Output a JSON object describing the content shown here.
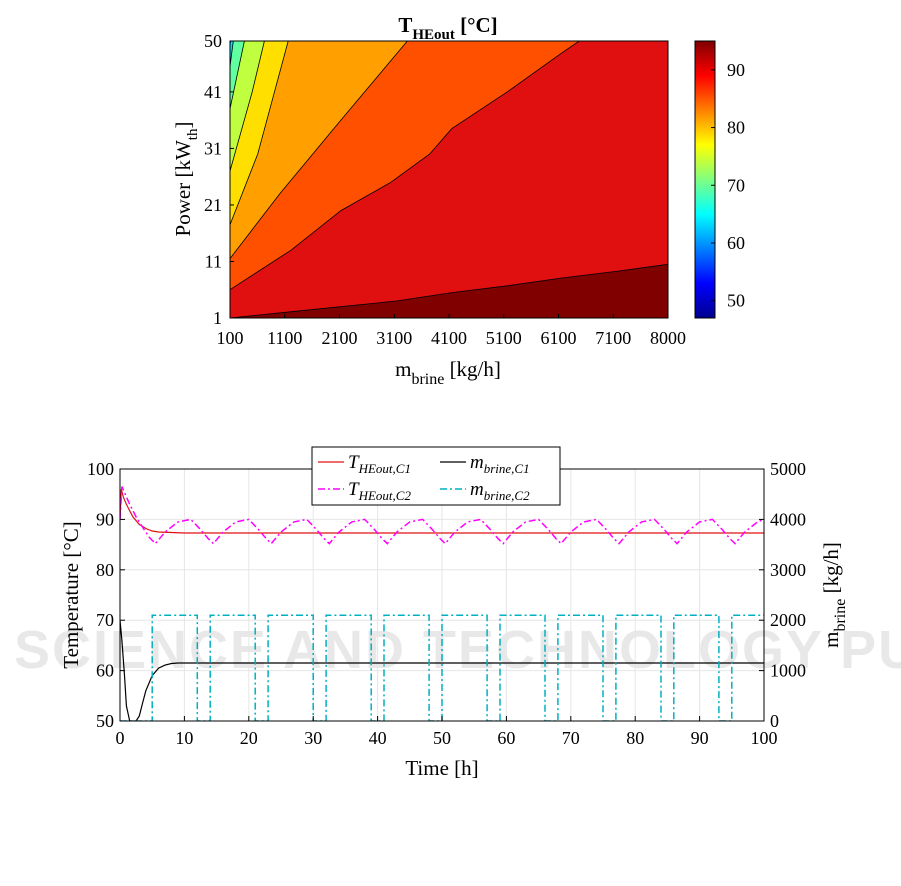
{
  "watermark": "SCITEPRESS SCIENCE AND TECHNOLOGY PUBLICATIONS",
  "chart_data": [
    {
      "type": "contour",
      "title": {
        "main": "T",
        "sub": "HEout",
        "rest": " [°C]"
      },
      "xlabel": {
        "main": "m",
        "sub": "brine",
        "rest": " [kg/h]"
      },
      "ylabel": {
        "main": "Power [kW",
        "sub": "th",
        "rest": "]"
      },
      "x_ticks": [
        "100",
        "1100",
        "2100",
        "3100",
        "4100",
        "5100",
        "6100",
        "7100",
        "8000"
      ],
      "y_ticks": [
        "1",
        "11",
        "21",
        "31",
        "41",
        "50"
      ],
      "xlim": [
        100,
        8000
      ],
      "ylim": [
        1,
        50
      ],
      "colorbar": {
        "ticks": [
          "50",
          "60",
          "70",
          "80",
          "90"
        ],
        "range": [
          47,
          95
        ]
      },
      "levels": [
        {
          "name": "below-50",
          "color": "#00008f"
        },
        {
          "name": "50-55",
          "color": "#0040ff"
        },
        {
          "name": "55-65",
          "color": "#00dfff"
        },
        {
          "name": "65-70",
          "color": "#60ff9f"
        },
        {
          "name": "70-75",
          "color": "#bfff40"
        },
        {
          "name": "75-80",
          "color": "#ffdf00"
        },
        {
          "name": "80-85",
          "color": "#ffa000"
        },
        {
          "name": "85-90",
          "color": "#ff5000"
        },
        {
          "name": "90-95",
          "color": "#e01010"
        },
        {
          "name": "above-95",
          "color": "#800000"
        }
      ],
      "contours": [
        {
          "level": "50",
          "points": [
            [
              100,
              45.5
            ],
            [
              160,
              50
            ]
          ]
        },
        {
          "level": "55",
          "points": [
            [
              100,
              38
            ],
            [
              360,
              50
            ]
          ]
        },
        {
          "level": "65",
          "points": [
            [
              100,
              27
            ],
            [
              500,
              41
            ],
            [
              720,
              50
            ]
          ]
        },
        {
          "level": "70",
          "points": [
            [
              100,
              17.5
            ],
            [
              600,
              30
            ],
            [
              1150,
              50
            ]
          ]
        },
        {
          "level": "75",
          "points": [
            [
              100,
              11.5
            ],
            [
              1000,
              23
            ],
            [
              2100,
              36
            ],
            [
              3300,
              50
            ]
          ]
        },
        {
          "level": "80",
          "points": [
            [
              100,
              6
            ],
            [
              1200,
              13
            ],
            [
              2100,
              20
            ],
            [
              3000,
              25
            ],
            [
              3700,
              30
            ],
            [
              4100,
              34.5
            ],
            [
              5100,
              41
            ],
            [
              6100,
              48
            ],
            [
              6400,
              50
            ]
          ]
        },
        {
          "level": "85",
          "points": [
            [
              100,
              1
            ],
            [
              1100,
              2
            ],
            [
              2100,
              3
            ],
            [
              3100,
              4
            ],
            [
              4100,
              5.5
            ],
            [
              5100,
              6.7
            ],
            [
              6100,
              8.1
            ],
            [
              7100,
              9.3
            ],
            [
              8000,
              10.5
            ]
          ]
        }
      ]
    },
    {
      "type": "line",
      "xlabel": "Time [h]",
      "ylabel_left": "Temperature [°C]",
      "ylabel_right": {
        "main": "m",
        "sub": "brine",
        "rest": " [kg/h]"
      },
      "x_ticks": [
        "0",
        "10",
        "20",
        "30",
        "40",
        "50",
        "60",
        "70",
        "80",
        "90",
        "100"
      ],
      "y_left_ticks": [
        "50",
        "60",
        "70",
        "80",
        "90",
        "100"
      ],
      "y_right_ticks": [
        "0",
        "1000",
        "2000",
        "3000",
        "4000",
        "5000"
      ],
      "xlim": [
        0,
        100
      ],
      "ylim_left": [
        50,
        100
      ],
      "ylim_right": [
        0,
        5000
      ],
      "grid": true,
      "legend": {
        "placement": "top"
      },
      "series": [
        {
          "name": "T_{HEout,C1}",
          "label": {
            "main": "T",
            "sub": "HEout,C1"
          },
          "axis": "left",
          "color": "#e01010",
          "style": "solid",
          "x": [
            0,
            0.2,
            0.5,
            1,
            1.5,
            2,
            3,
            4,
            5,
            6,
            8,
            10,
            15,
            20,
            30,
            40,
            50,
            60,
            70,
            80,
            90,
            100
          ],
          "y": [
            90,
            96,
            94.5,
            93,
            91.7,
            90.5,
            89,
            88.2,
            87.7,
            87.5,
            87.4,
            87.3,
            87.3,
            87.3,
            87.3,
            87.3,
            87.3,
            87.3,
            87.3,
            87.3,
            87.3,
            87.3
          ]
        },
        {
          "name": "m_{brine,C1}",
          "label": {
            "main": "m",
            "sub": "brine,C1"
          },
          "axis": "right",
          "color": "#000000",
          "style": "solid",
          "x": [
            0,
            0.3,
            0.7,
            1,
            1.5,
            2,
            2.5,
            3,
            3.5,
            4,
            5,
            6,
            7,
            8,
            9,
            10,
            12,
            15,
            20,
            30,
            40,
            50,
            60,
            70,
            80,
            90,
            100
          ],
          "y": [
            2000,
            1600,
            900,
            300,
            0,
            0,
            0,
            100,
            350,
            600,
            900,
            1050,
            1110,
            1140,
            1150,
            1150,
            1150,
            1150,
            1150,
            1150,
            1150,
            1150,
            1150,
            1150,
            1150,
            1150,
            1150
          ]
        },
        {
          "name": "T_{HEout,C2}",
          "label": {
            "main": "T",
            "sub": "HEout,C2"
          },
          "axis": "left",
          "color": "#ff00ff",
          "style": "dashdot",
          "x": [
            0,
            0.3,
            0.8,
            1.5,
            2.5,
            3.5,
            4.5,
            5.5,
            7,
            9,
            11,
            12.5,
            13.7,
            14.5,
            16,
            18,
            20,
            21.5,
            22.7,
            23.5,
            25,
            27,
            29,
            30.5,
            31.7,
            32.5,
            34,
            36,
            38,
            39.5,
            40.7,
            41.5,
            43,
            45,
            47,
            48.5,
            49.7,
            50.5,
            52,
            54,
            56,
            57.5,
            58.7,
            59.5,
            61,
            63,
            65,
            66.5,
            67.7,
            68.5,
            70,
            72,
            74,
            75.5,
            76.7,
            77.5,
            79,
            81,
            83,
            84.5,
            85.7,
            86.5,
            88,
            90,
            92,
            93.5,
            94.7,
            95.5,
            97,
            99,
            100
          ],
          "y": [
            90,
            96.5,
            95,
            93,
            90.5,
            88.5,
            86.5,
            85.2,
            87.5,
            89.5,
            90,
            88,
            86.2,
            85.2,
            87.5,
            89.5,
            90,
            88,
            86.2,
            85.2,
            87.5,
            89.5,
            90,
            88,
            86.2,
            85.2,
            87.5,
            89.5,
            90,
            88,
            86.2,
            85.2,
            87.5,
            89.5,
            90,
            88,
            86.2,
            85.2,
            87.5,
            89.5,
            90,
            88,
            86.2,
            85.2,
            87.5,
            89.5,
            90,
            88,
            86.2,
            85.2,
            87.5,
            89.5,
            90,
            88,
            86.2,
            85.2,
            87.5,
            89.5,
            90,
            88,
            86.2,
            85.2,
            87.5,
            89.5,
            90,
            88,
            86.2,
            85.2,
            87.5,
            89.5,
            90
          ]
        },
        {
          "name": "m_{brine,C2}",
          "label": {
            "main": "m",
            "sub": "brine,C2"
          },
          "axis": "right",
          "color": "#00b0c0",
          "style": "dashdot",
          "x": [
            0,
            5,
            5,
            12,
            12,
            14,
            14,
            21,
            21,
            23,
            23,
            30,
            30,
            32,
            32,
            39,
            39,
            41,
            41,
            48,
            48,
            50,
            50,
            57,
            57,
            59,
            59,
            66,
            66,
            68,
            68,
            75,
            75,
            77,
            77,
            84,
            84,
            86,
            86,
            93,
            93,
            95,
            95,
            100
          ],
          "y": [
            0,
            0,
            2100,
            2100,
            0,
            0,
            2100,
            2100,
            0,
            0,
            2100,
            2100,
            0,
            0,
            2100,
            2100,
            0,
            0,
            2100,
            2100,
            0,
            0,
            2100,
            2100,
            0,
            0,
            2100,
            2100,
            0,
            0,
            2100,
            2100,
            0,
            0,
            2100,
            2100,
            0,
            0,
            2100,
            2100,
            0,
            0,
            2100,
            2100
          ]
        }
      ]
    }
  ]
}
